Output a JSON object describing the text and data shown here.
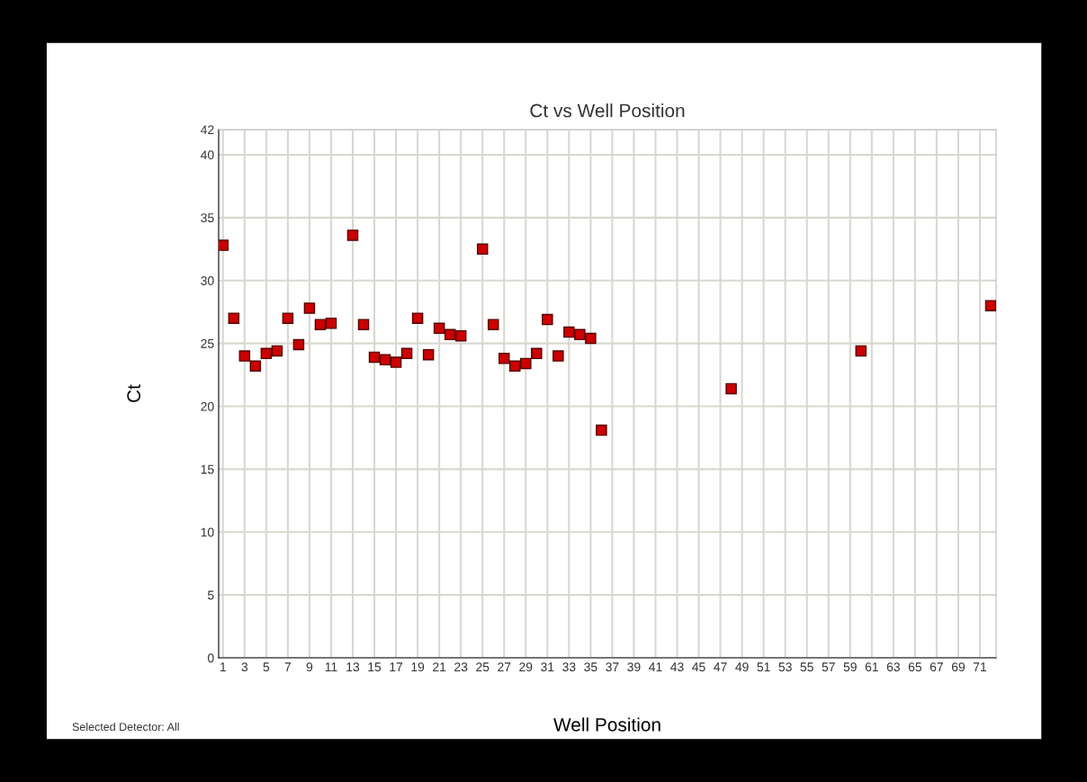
{
  "chart_data": {
    "type": "scatter",
    "title": "Ct vs Well Position",
    "xlabel": "Well Position",
    "ylabel": "Ct",
    "x": [
      1,
      2,
      3,
      4,
      5,
      6,
      7,
      8,
      9,
      10,
      11,
      13,
      14,
      15,
      16,
      17,
      18,
      19,
      20,
      21,
      22,
      23,
      25,
      26,
      27,
      28,
      29,
      30,
      31,
      32,
      33,
      34,
      35,
      36,
      48,
      60,
      72
    ],
    "values": [
      32.8,
      27.0,
      24.0,
      23.2,
      24.2,
      24.4,
      27.0,
      24.9,
      27.8,
      26.5,
      26.6,
      33.6,
      26.5,
      23.9,
      23.7,
      23.5,
      24.2,
      27.0,
      24.1,
      26.2,
      25.7,
      25.6,
      32.5,
      26.5,
      23.8,
      23.2,
      23.4,
      24.2,
      26.9,
      24.0,
      25.9,
      25.7,
      25.4,
      18.1,
      21.4,
      24.4,
      28.0
    ],
    "color": "#cc0000",
    "marker": "square",
    "grid": true,
    "legend": false,
    "xlim": [
      0.6,
      72.5
    ],
    "xticks": [
      1,
      3,
      5,
      7,
      9,
      11,
      13,
      15,
      17,
      19,
      21,
      23,
      25,
      27,
      29,
      31,
      33,
      35,
      37,
      39,
      41,
      43,
      45,
      47,
      49,
      51,
      53,
      55,
      57,
      59,
      61,
      63,
      65,
      67,
      69,
      71
    ],
    "ylim": [
      0,
      42
    ],
    "yticks": [
      0,
      5,
      10,
      15,
      20,
      25,
      30,
      35,
      40,
      42
    ],
    "annotations": [
      "Selected Detector: All"
    ]
  }
}
